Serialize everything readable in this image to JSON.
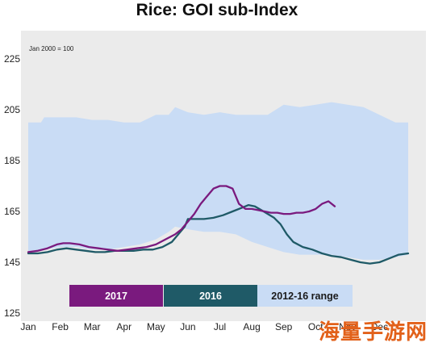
{
  "chart_data": {
    "type": "line",
    "title": "Rice: GOI sub-Index",
    "subtitle": "Jan 2000 = 100",
    "xlabel": "",
    "ylabel": "",
    "categories": [
      "Jan",
      "Feb",
      "Mar",
      "Apr",
      "May",
      "Jun",
      "Jul",
      "Aug",
      "Sep",
      "Oct",
      "Nov",
      "Dec"
    ],
    "xlim": [
      0,
      12
    ],
    "ylim": [
      125,
      225
    ],
    "yticks": [
      125,
      145,
      165,
      185,
      205,
      225
    ],
    "grid": false,
    "range": {
      "name": "2012-16 range",
      "color": "#c9dcf5",
      "x": [
        0,
        0.4,
        0.5,
        1.0,
        1.5,
        2.0,
        2.5,
        3.0,
        3.5,
        4.0,
        4.4,
        4.6,
        5.0,
        5.5,
        6.0,
        6.5,
        7.0,
        7.5,
        8.0,
        8.5,
        9.0,
        9.5,
        10.0,
        10.5,
        11.0,
        11.5,
        11.9
      ],
      "upper": [
        200,
        200,
        202,
        202,
        202,
        201,
        201,
        200,
        200,
        203,
        203,
        206,
        204,
        203,
        204,
        203,
        203,
        203,
        207,
        206,
        207,
        208,
        207,
        206,
        203,
        200,
        200
      ],
      "lower": [
        149,
        150,
        150,
        151,
        151,
        150,
        150,
        151,
        152,
        154,
        157,
        159,
        158,
        157,
        157,
        156,
        153,
        151,
        149,
        148,
        148,
        148,
        147,
        146,
        146,
        147,
        148
      ]
    },
    "series": [
      {
        "name": "2017",
        "color": "#7a1a7e",
        "x": [
          0,
          0.3,
          0.6,
          0.9,
          1.1,
          1.3,
          1.6,
          1.9,
          2.2,
          2.5,
          2.8,
          3.1,
          3.4,
          3.7,
          4.0,
          4.3,
          4.6,
          4.8,
          5.0,
          5.2,
          5.4,
          5.6,
          5.8,
          6.0,
          6.2,
          6.4,
          6.6,
          6.8,
          7.0,
          7.2,
          7.4,
          7.6,
          7.8,
          8.0,
          8.2,
          8.4,
          8.6,
          8.8,
          9.0,
          9.2,
          9.4,
          9.6
        ],
        "values": [
          149,
          149.5,
          150.5,
          152,
          152.5,
          152.5,
          152,
          151,
          150.5,
          150,
          149.5,
          150,
          150.5,
          151,
          152,
          154,
          156,
          158,
          161,
          164,
          168,
          171,
          174,
          175,
          175,
          174,
          168,
          166,
          166,
          165.5,
          165,
          164.5,
          164.5,
          164,
          164,
          164.5,
          164.5,
          165,
          166,
          168,
          169,
          167
        ]
      },
      {
        "name": "2016",
        "color": "#1f5a67",
        "x": [
          0,
          0.3,
          0.6,
          0.9,
          1.2,
          1.5,
          1.8,
          2.1,
          2.4,
          2.7,
          3.0,
          3.3,
          3.6,
          3.9,
          4.2,
          4.5,
          4.7,
          4.9,
          5.0,
          5.2,
          5.5,
          5.8,
          6.1,
          6.4,
          6.7,
          6.9,
          7.1,
          7.3,
          7.5,
          7.7,
          7.9,
          8.1,
          8.3,
          8.6,
          8.9,
          9.2,
          9.5,
          9.8,
          10.1,
          10.4,
          10.7,
          11.0,
          11.3,
          11.6,
          11.9
        ],
        "values": [
          148.5,
          148.5,
          149,
          150,
          150.5,
          150,
          149.5,
          149,
          149,
          149.5,
          149.5,
          149.5,
          150,
          150,
          151,
          153,
          156,
          159,
          162,
          162,
          162,
          162.5,
          163.5,
          165,
          166.5,
          167.5,
          167,
          165.5,
          164,
          162.5,
          160,
          156,
          153,
          151,
          150,
          148.5,
          147.5,
          147,
          146,
          145,
          144.5,
          145,
          146.5,
          148,
          148.5
        ]
      }
    ],
    "legend": {
      "placement": "bottom-center",
      "items": [
        {
          "label": "2017",
          "color": "#7a1a7e",
          "text_color": "#ffffff"
        },
        {
          "label": "2016",
          "color": "#1f5a67",
          "text_color": "#ffffff"
        },
        {
          "label": "2012-16 range",
          "color": "#c9dcf5",
          "text_color": "#1a1a1a"
        }
      ]
    }
  },
  "watermark": "海量手游网",
  "colors": {
    "plot_background": "#ebebeb",
    "axis_text": "#222222"
  }
}
